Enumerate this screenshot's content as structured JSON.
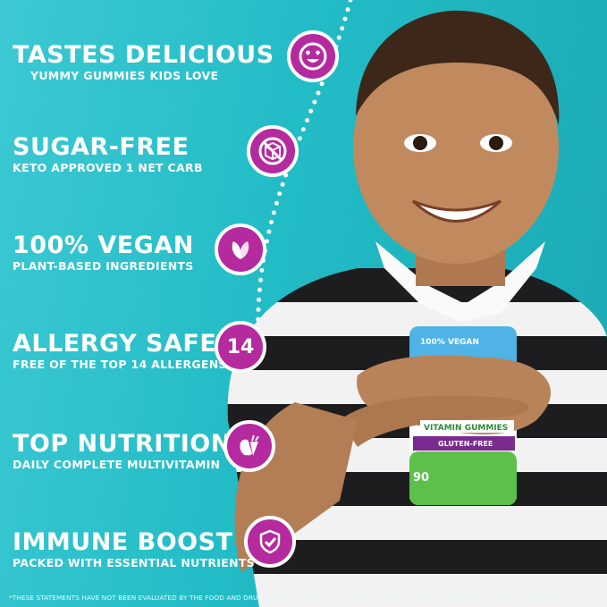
{
  "features": [
    {
      "title": "TASTES DELICIOUS",
      "subtitle": "YUMMY GUMMIES KIDS LOVE",
      "icon": "smiley-heart-eyes-icon"
    },
    {
      "title": "SUGAR-FREE",
      "subtitle": "KETO APPROVED 1 NET CARB",
      "icon": "no-sugar-cube-icon"
    },
    {
      "title": "100% VEGAN",
      "subtitle": "PLANT-BASED INGREDIENTS",
      "icon": "leaves-icon"
    },
    {
      "title": "ALLERGY SAFE",
      "subtitle": "FREE OF THE TOP 14 ALLERGENS",
      "icon": "number-14-icon",
      "icon_text": "14"
    },
    {
      "title": "TOP NUTRITION",
      "subtitle": "DAILY COMPLETE MULTIVITAMIN",
      "icon": "apple-carrot-icon"
    },
    {
      "title": "IMMUNE BOOST",
      "subtitle": "PACKED WITH ESSENTIAL NUTRIENTS",
      "icon": "shield-check-icon"
    }
  ],
  "product": {
    "badge": "100% VEGAN",
    "label": "VITAMIN GUMMIES",
    "tagline": "GLUTEN-FREE",
    "count": "90"
  },
  "disclaimer": "*THESE STATEMENTS HAVE NOT BEEN EVALUATED BY THE FOOD AND DRUG ADMINISTRATION. THIS PRODUCT IS NOT INTENDED TO DIAGNOSE, TREAT, CURE OR PREVENT ANY DISEASE.",
  "colors": {
    "background": "#22bcc6",
    "icon_fill": "#b52a9f",
    "text": "#ffffff"
  }
}
